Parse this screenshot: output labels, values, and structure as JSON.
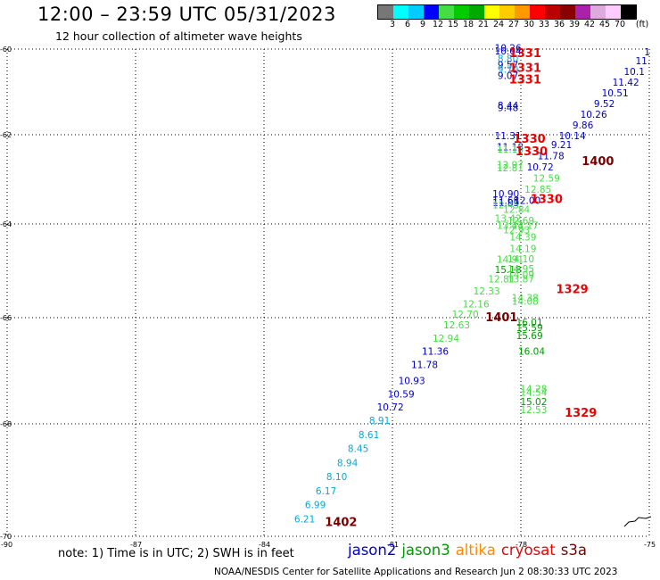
{
  "header": {
    "title": "12:00 – 23:59 UTC 05/31/2023",
    "subtitle": "12 hour collection of altimeter wave heights"
  },
  "colors": {
    "jason2": "#0000cc",
    "jason3": "#009900",
    "altika": "#ff8800",
    "cryosat": "#ee0000",
    "s3a": "#770000"
  },
  "colorbar": {
    "unit": "(ft)",
    "ticks": [
      "3",
      "6",
      "9",
      "12",
      "15",
      "18",
      "21",
      "24",
      "27",
      "30",
      "33",
      "36",
      "39",
      "42",
      "45",
      "70"
    ],
    "colors": [
      "#777777",
      "#00ffff",
      "#00ccff",
      "#0000ff",
      "#44dd44",
      "#00cc00",
      "#00aa00",
      "#ffff00",
      "#ffcc00",
      "#ff9900",
      "#ff0000",
      "#bb0000",
      "#880000",
      "#aa22aa",
      "#ddaadd",
      "#ffccff",
      "#000000"
    ]
  },
  "chart_data": {
    "type": "scatter",
    "title": "12:00 – 23:59 UTC 05/31/2023",
    "subtitle": "12 hour collection of altimeter wave heights",
    "xlim": [
      -90,
      -75
    ],
    "ylim": [
      -70,
      -60
    ],
    "x_ticks": [
      "-90",
      "-87",
      "-84",
      "-81",
      "-78",
      "-75"
    ],
    "y_ticks": [
      "-60",
      "-62",
      "-64",
      "-66",
      "-68",
      "-70"
    ],
    "grid": true,
    "points": [
      {
        "x": -78.3,
        "y": -60.05,
        "label": "10.26",
        "color": "#0000cc"
      },
      {
        "x": -78.3,
        "y": -60.12,
        "label": "10.04",
        "color": "#0000cc"
      },
      {
        "x": -78.3,
        "y": -60.3,
        "label": "8.80",
        "color": "#00aadd"
      },
      {
        "x": -78.3,
        "y": -60.45,
        "label": "9.57",
        "color": "#0000cc"
      },
      {
        "x": -78.3,
        "y": -60.55,
        "label": "9.70",
        "color": "#00aadd"
      },
      {
        "x": -78.3,
        "y": -60.7,
        "label": "9.07",
        "color": "#0000cc"
      },
      {
        "x": -78.3,
        "y": -61.4,
        "label": "8.44",
        "color": "#0000cc"
      },
      {
        "x": -78.3,
        "y": -61.45,
        "label": "9.48",
        "color": "#0000cc"
      },
      {
        "x": -78.3,
        "y": -62.1,
        "label": "11.31",
        "color": "#0000cc"
      },
      {
        "x": -78.25,
        "y": -62.35,
        "label": "11.18",
        "color": "#0000cc"
      },
      {
        "x": -78.25,
        "y": -62.4,
        "label": "11.18",
        "color": "#44dd44"
      },
      {
        "x": -78.25,
        "y": -62.75,
        "label": "12.97",
        "color": "#44dd44"
      },
      {
        "x": -78.25,
        "y": -62.82,
        "label": "12.81",
        "color": "#44dd44"
      },
      {
        "x": -78.35,
        "y": -63.4,
        "label": "10.90",
        "color": "#0000cc"
      },
      {
        "x": -78.35,
        "y": -63.55,
        "label": "11.68",
        "color": "#0000cc"
      },
      {
        "x": -78.35,
        "y": -63.6,
        "label": "11.85",
        "color": "#0000cc"
      },
      {
        "x": -78.35,
        "y": -63.65,
        "label": "12.45",
        "color": "#44dd44"
      },
      {
        "x": -78.3,
        "y": -63.95,
        "label": "13.42",
        "color": "#44dd44"
      },
      {
        "x": -78.25,
        "y": -64.1,
        "label": "13.44",
        "color": "#44dd44"
      },
      {
        "x": -77.9,
        "y": -64.1,
        "label": "13.17",
        "color": "#44dd44"
      },
      {
        "x": -77.95,
        "y": -64.35,
        "label": "14.39",
        "color": "#44dd44"
      },
      {
        "x": -77.95,
        "y": -64.6,
        "label": "14.19",
        "color": "#44dd44"
      },
      {
        "x": -78.0,
        "y": -64.82,
        "label": "14.10",
        "color": "#44dd44"
      },
      {
        "x": -78.25,
        "y": -64.83,
        "label": "14.91",
        "color": "#44dd44"
      },
      {
        "x": -78.3,
        "y": -65.05,
        "label": "15.18",
        "color": "#009900"
      },
      {
        "x": -78.0,
        "y": -65.03,
        "label": "14.95",
        "color": "#44dd44"
      },
      {
        "x": -78.0,
        "y": -65.15,
        "label": "14.09",
        "color": "#44dd44"
      },
      {
        "x": -78.0,
        "y": -65.25,
        "label": "13.87",
        "color": "#44dd44"
      },
      {
        "x": -78.45,
        "y": -65.25,
        "label": "12.81",
        "color": "#44dd44"
      },
      {
        "x": -78.8,
        "y": -65.5,
        "label": "12.33",
        "color": "#44dd44"
      },
      {
        "x": -79.05,
        "y": -65.78,
        "label": "12.16",
        "color": "#44dd44"
      },
      {
        "x": -77.9,
        "y": -65.65,
        "label": "14.38",
        "color": "#44dd44"
      },
      {
        "x": -77.9,
        "y": -65.72,
        "label": "14.08",
        "color": "#44dd44"
      },
      {
        "x": -79.3,
        "y": -66.0,
        "label": "12.70",
        "color": "#44dd44"
      },
      {
        "x": -79.5,
        "y": -66.2,
        "label": "12.63",
        "color": "#44dd44"
      },
      {
        "x": -79.75,
        "y": -66.45,
        "label": "12.94",
        "color": "#44dd44"
      },
      {
        "x": -77.8,
        "y": -66.15,
        "label": "16.01",
        "color": "#009900"
      },
      {
        "x": -77.8,
        "y": -66.25,
        "label": "15.59",
        "color": "#009900"
      },
      {
        "x": -77.8,
        "y": -66.4,
        "label": "15.69",
        "color": "#009900"
      },
      {
        "x": -77.75,
        "y": -66.7,
        "label": "16.04",
        "color": "#009900"
      },
      {
        "x": -80.0,
        "y": -66.7,
        "label": "11.36",
        "color": "#0000cc"
      },
      {
        "x": -80.25,
        "y": -66.95,
        "label": "11.78",
        "color": "#0000cc"
      },
      {
        "x": -80.55,
        "y": -67.25,
        "label": "10.93",
        "color": "#0000cc"
      },
      {
        "x": -80.8,
        "y": -67.5,
        "label": "10.59",
        "color": "#0000cc"
      },
      {
        "x": -81.05,
        "y": -67.75,
        "label": "10.72",
        "color": "#0000cc"
      },
      {
        "x": -77.7,
        "y": -67.4,
        "label": "14.28",
        "color": "#44dd44"
      },
      {
        "x": -77.7,
        "y": -67.47,
        "label": "14.54",
        "color": "#44dd44"
      },
      {
        "x": -77.7,
        "y": -67.65,
        "label": "15.02",
        "color": "#009900"
      },
      {
        "x": -77.7,
        "y": -67.8,
        "label": "12.53",
        "color": "#44dd44"
      },
      {
        "x": -81.3,
        "y": -68.0,
        "label": "8.91",
        "color": "#00aadd"
      },
      {
        "x": -81.55,
        "y": -68.25,
        "label": "8.61",
        "color": "#00aadd"
      },
      {
        "x": -81.8,
        "y": -68.5,
        "label": "8.45",
        "color": "#00aadd"
      },
      {
        "x": -82.05,
        "y": -68.75,
        "label": "8.94",
        "color": "#00aadd"
      },
      {
        "x": -82.3,
        "y": -69.0,
        "label": "8.10",
        "color": "#00aadd"
      },
      {
        "x": -82.55,
        "y": -69.25,
        "label": "6.17",
        "color": "#00aadd"
      },
      {
        "x": -82.8,
        "y": -69.5,
        "label": "6.99",
        "color": "#00aadd"
      },
      {
        "x": -83.05,
        "y": -69.75,
        "label": "6.21",
        "color": "#00aadd"
      },
      {
        "x": -75.05,
        "y": -60.15,
        "label": "1",
        "color": "#0000cc"
      },
      {
        "x": -75.15,
        "y": -60.35,
        "label": "11.",
        "color": "#0000cc"
      },
      {
        "x": -75.35,
        "y": -60.6,
        "label": "10.1",
        "color": "#0000cc"
      },
      {
        "x": -75.55,
        "y": -60.85,
        "label": "11.42",
        "color": "#0000cc"
      },
      {
        "x": -75.8,
        "y": -61.1,
        "label": "10.51",
        "color": "#0000cc"
      },
      {
        "x": -76.05,
        "y": -61.35,
        "label": "9.52",
        "color": "#0000cc"
      },
      {
        "x": -76.3,
        "y": -61.6,
        "label": "10.26",
        "color": "#0000cc"
      },
      {
        "x": -76.55,
        "y": -61.85,
        "label": "9.86",
        "color": "#0000cc"
      },
      {
        "x": -76.8,
        "y": -62.1,
        "label": "10.14",
        "color": "#0000cc"
      },
      {
        "x": -77.05,
        "y": -62.3,
        "label": "9.21",
        "color": "#0000cc"
      },
      {
        "x": -77.3,
        "y": -62.55,
        "label": "11.78",
        "color": "#0000cc"
      },
      {
        "x": -77.55,
        "y": -62.8,
        "label": "10.72",
        "color": "#0000cc"
      },
      {
        "x": -77.4,
        "y": -63.05,
        "label": "12.59",
        "color": "#44dd44"
      },
      {
        "x": -77.6,
        "y": -63.3,
        "label": "12.85",
        "color": "#44dd44"
      },
      {
        "x": -77.85,
        "y": -63.55,
        "label": "12.00",
        "color": "#0000cc"
      },
      {
        "x": -78.1,
        "y": -63.75,
        "label": "12.84",
        "color": "#44dd44"
      },
      {
        "x": -78.0,
        "y": -64.0,
        "label": "12.69",
        "color": "#44dd44"
      },
      {
        "x": -78.1,
        "y": -64.2,
        "label": "12.93",
        "color": "#44dd44"
      }
    ],
    "annotations": [
      {
        "x": -77.9,
        "y": -60.1,
        "text": "1331",
        "color": "#ee0000"
      },
      {
        "x": -77.9,
        "y": -60.45,
        "text": "1331",
        "color": "#ee0000"
      },
      {
        "x": -77.9,
        "y": -60.72,
        "text": "1331",
        "color": "#ee0000"
      },
      {
        "x": -77.8,
        "y": -62.1,
        "text": "1330",
        "color": "#ee0000"
      },
      {
        "x": -77.75,
        "y": -62.38,
        "text": "1330",
        "color": "#ee0000"
      },
      {
        "x": -76.2,
        "y": -62.6,
        "text": "1400",
        "color": "#770000"
      },
      {
        "x": -77.4,
        "y": -63.45,
        "text": "1330",
        "color": "#ee0000"
      },
      {
        "x": -76.8,
        "y": -65.4,
        "text": "1329",
        "color": "#ee0000"
      },
      {
        "x": -78.45,
        "y": -66.0,
        "text": "1401",
        "color": "#770000"
      },
      {
        "x": -76.6,
        "y": -67.8,
        "text": "1329",
        "color": "#ee0000"
      },
      {
        "x": -82.2,
        "y": -69.75,
        "text": "1402",
        "color": "#770000"
      }
    ]
  },
  "legend": {
    "note": "note: 1) Time is in UTC; 2) SWH is in feet",
    "satellites": [
      "jason2",
      "jason3",
      "altika",
      "cryosat",
      "s3a"
    ]
  },
  "footer": {
    "credit": "NOAA/NESDIS Center for Satellite Applications and Research   Jun  2 08:30:33 UTC 2023"
  }
}
